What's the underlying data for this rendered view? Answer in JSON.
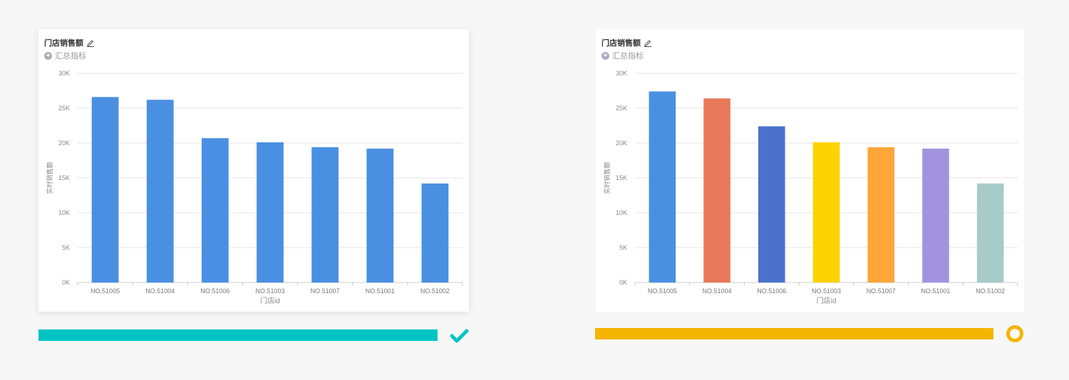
{
  "panels": [
    {
      "title": "门店销售额",
      "subtitle": "汇总指标",
      "progress_color": "#00c4c4",
      "status_icon": "check-icon",
      "chart_data": {
        "type": "bar",
        "categories": [
          "NO.51005",
          "NO.51004",
          "NO.51006",
          "NO.51003",
          "NO.51007",
          "NO.51001",
          "NO.51002"
        ],
        "values": [
          26600,
          26200,
          20700,
          20100,
          19400,
          19200,
          14200
        ],
        "colors": [
          "#4a90e2",
          "#4a90e2",
          "#4a90e2",
          "#4a90e2",
          "#4a90e2",
          "#4a90e2",
          "#4a90e2"
        ],
        "xlabel": "门店id",
        "ylabel": "实时销售额",
        "ylim": [
          0,
          30000
        ],
        "yticks": [
          "0K",
          "5K",
          "10K",
          "15K",
          "20K",
          "25K",
          "30K"
        ],
        "grid": true
      }
    },
    {
      "title": "门店销售额",
      "subtitle": "汇总指标",
      "progress_color": "#f5b400",
      "status_icon": "ring-icon",
      "chart_data": {
        "type": "bar",
        "categories": [
          "NO.51005",
          "NO.51004",
          "NO.51006",
          "NO.51003",
          "NO.51007",
          "NO.51001",
          "NO.51002"
        ],
        "values": [
          27400,
          26400,
          22400,
          20100,
          19400,
          19200,
          14200
        ],
        "colors": [
          "#4a90e2",
          "#e8795a",
          "#4a72cc",
          "#fcd400",
          "#ffa638",
          "#a393df",
          "#a6cbc8"
        ],
        "xlabel": "门店id",
        "ylabel": "实时销售额",
        "ylim": [
          0,
          30000
        ],
        "yticks": [
          "0K",
          "5K",
          "10K",
          "15K",
          "20K",
          "25K",
          "30K"
        ],
        "grid": true
      }
    }
  ]
}
